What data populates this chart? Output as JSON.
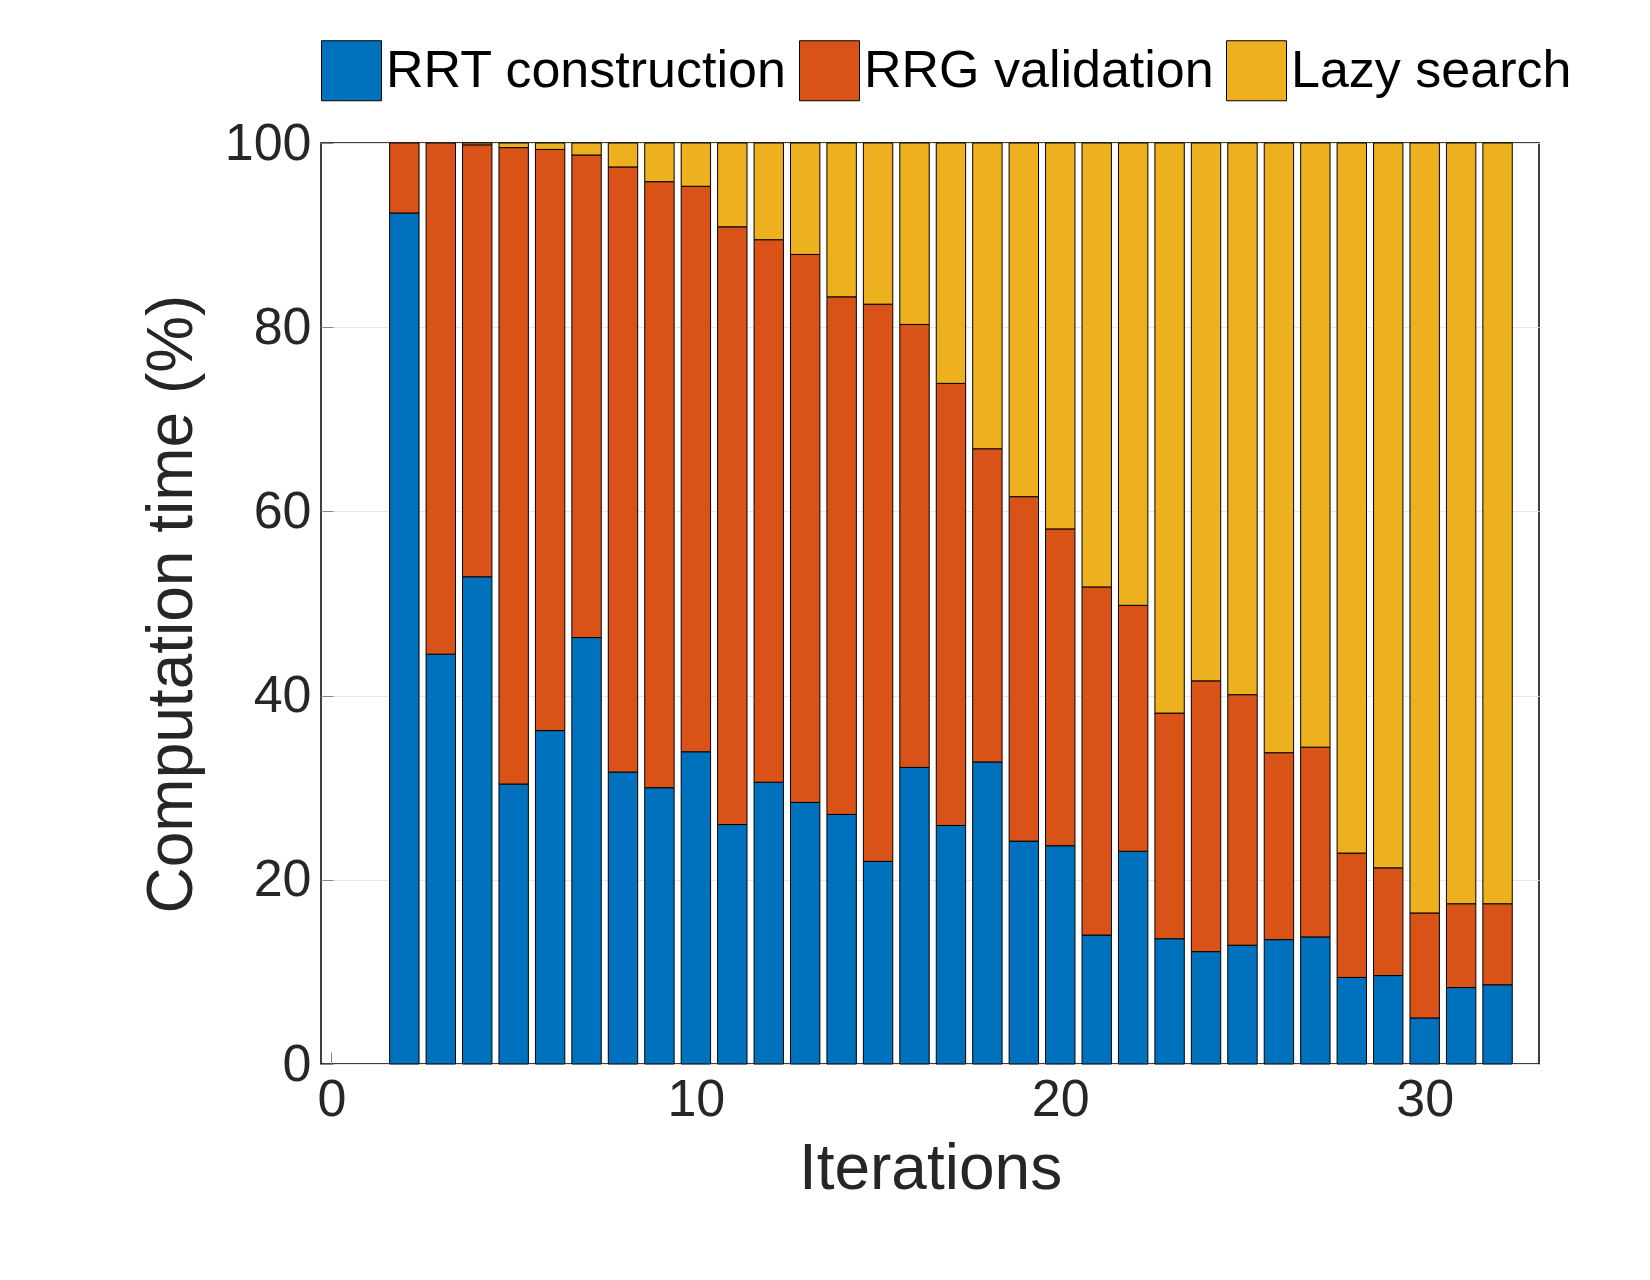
{
  "chart_data": {
    "type": "bar",
    "stacked": true,
    "xlabel": "Iterations",
    "ylabel": "Computation time (%)",
    "x": [
      2,
      3,
      4,
      5,
      6,
      7,
      8,
      9,
      10,
      11,
      12,
      13,
      14,
      15,
      16,
      17,
      18,
      19,
      20,
      21,
      22,
      23,
      24,
      25,
      26,
      27,
      28,
      29,
      30,
      31,
      32
    ],
    "series": [
      {
        "name": "RRT construction",
        "color": "#0072bd",
        "values": [
          92.4,
          44.5,
          52.9,
          30.4,
          36.2,
          46.3,
          31.7,
          30.0,
          33.9,
          26.0,
          30.6,
          28.4,
          27.1,
          22.0,
          32.2,
          25.9,
          32.8,
          24.2,
          23.7,
          14.0,
          23.1,
          13.6,
          12.2,
          12.9,
          13.5,
          13.8,
          9.4,
          9.6,
          5.0,
          8.3,
          8.6
        ]
      },
      {
        "name": "RRG validation",
        "color": "#d95319",
        "values": [
          7.6,
          55.5,
          46.9,
          69.1,
          63.1,
          52.4,
          65.7,
          65.8,
          61.4,
          64.9,
          58.9,
          59.5,
          56.2,
          60.5,
          48.1,
          48.0,
          34.0,
          37.4,
          34.4,
          37.8,
          26.7,
          24.5,
          29.4,
          27.2,
          20.3,
          20.6,
          13.5,
          11.7,
          11.4,
          9.1,
          8.8
        ]
      },
      {
        "name": "Lazy search",
        "color": "#edb120",
        "values": [
          0,
          0,
          0.2,
          0.5,
          0.7,
          1.3,
          2.6,
          4.2,
          4.7,
          9.1,
          10.5,
          12.1,
          16.7,
          17.5,
          19.7,
          26.1,
          33.2,
          38.4,
          41.9,
          48.2,
          50.2,
          61.9,
          58.4,
          59.9,
          66.2,
          65.6,
          77.1,
          78.7,
          83.6,
          82.6,
          82.6
        ]
      }
    ],
    "xlim": [
      -0.15,
      33
    ],
    "xticks": [
      0,
      10,
      20,
      30
    ],
    "ylim": [
      0,
      100
    ],
    "yticks": [
      0,
      20,
      40,
      60,
      80,
      100
    ],
    "grid": "y",
    "legend": "top"
  }
}
